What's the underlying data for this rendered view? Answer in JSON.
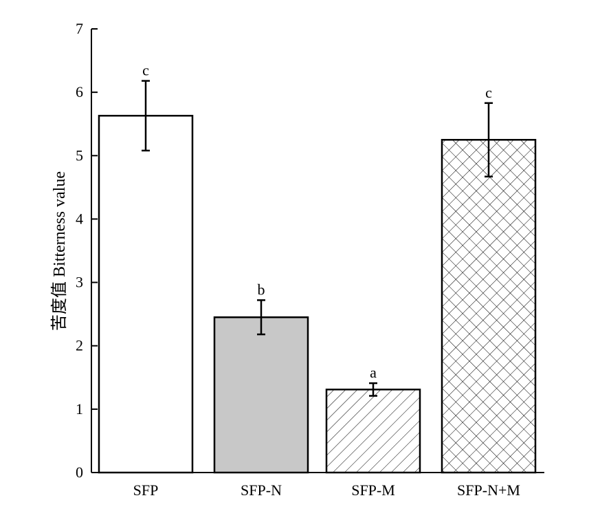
{
  "chart_data": {
    "type": "bar",
    "title": "",
    "xlabel": "",
    "ylabel": "苦度值 Bitterness value",
    "ylim": [
      0,
      7
    ],
    "yticks": [
      0,
      1,
      2,
      3,
      4,
      5,
      6,
      7
    ],
    "grid": false,
    "categories": [
      "SFP",
      "SFP-N",
      "SFP-M",
      "SFP-N+M"
    ],
    "values": [
      5.63,
      2.45,
      1.31,
      5.25
    ],
    "errors": [
      0.55,
      0.27,
      0.1,
      0.58
    ],
    "significance_labels": [
      "c",
      "b",
      "a",
      "c"
    ],
    "bar_fills": [
      "white",
      "gray",
      "diagonal-hatch",
      "crosshatch"
    ],
    "colors": {
      "axis": "#000000",
      "bar_outline": "#000000",
      "gray_fill": "#c8c8c8",
      "white_fill": "#ffffff"
    }
  }
}
